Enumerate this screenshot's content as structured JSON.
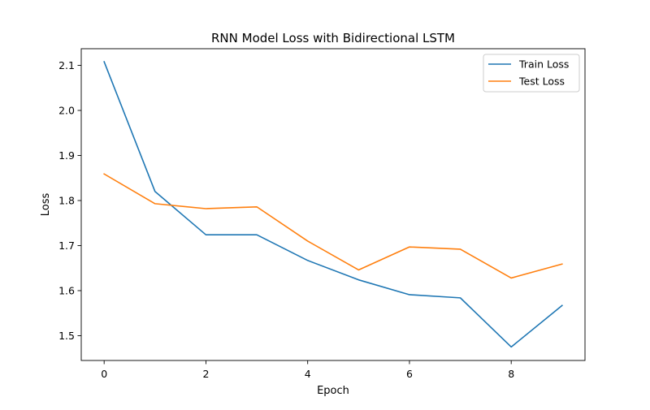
{
  "chart_data": {
    "type": "line",
    "title": "RNN Model Loss with Bidirectional LSTM",
    "xlabel": "Epoch",
    "ylabel": "Loss",
    "x": [
      0,
      1,
      2,
      3,
      4,
      5,
      6,
      7,
      8,
      9
    ],
    "xlim": [
      -0.45,
      9.45
    ],
    "ylim": [
      1.445,
      2.137
    ],
    "xticks": [
      0,
      2,
      4,
      6,
      8
    ],
    "yticks": [
      1.5,
      1.6,
      1.7,
      1.8,
      1.9,
      2.0,
      2.1
    ],
    "xtick_labels": [
      "0",
      "2",
      "4",
      "6",
      "8"
    ],
    "ytick_labels": [
      "1.5",
      "1.6",
      "1.7",
      "1.8",
      "1.9",
      "2.0",
      "2.1"
    ],
    "grid": false,
    "legend_position": "top-right",
    "series": [
      {
        "name": "Train Loss",
        "color": "#1f77b4",
        "values": [
          2.108,
          1.82,
          1.724,
          1.724,
          1.667,
          1.624,
          1.591,
          1.584,
          1.475,
          1.567
        ]
      },
      {
        "name": "Test Loss",
        "color": "#ff7f0e",
        "values": [
          1.859,
          1.793,
          1.782,
          1.786,
          1.71,
          1.646,
          1.697,
          1.692,
          1.628,
          1.659
        ]
      }
    ]
  }
}
